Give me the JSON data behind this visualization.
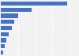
{
  "values": [
    77,
    36,
    20,
    16,
    13,
    9,
    6,
    5,
    3
  ],
  "bar_color": "#4472c4",
  "background_color": "#f2f2f2",
  "xlim": [
    0,
    90
  ],
  "grid_color": "#ffffff",
  "bar_height": 0.7
}
